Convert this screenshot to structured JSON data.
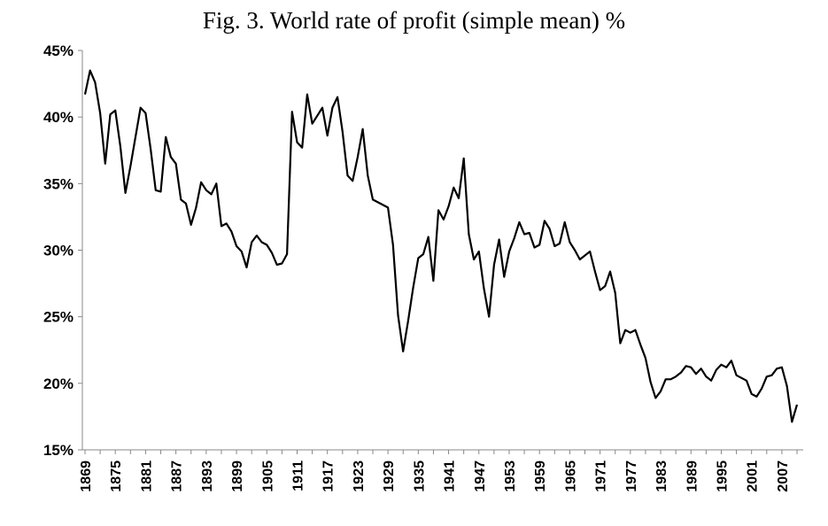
{
  "chart_data": {
    "type": "line",
    "title": "Fig. 3. World rate of profit (simple mean) %",
    "xlabel": "",
    "ylabel": "",
    "ylim": [
      15,
      45
    ],
    "yticks": [
      "15%",
      "20%",
      "25%",
      "30%",
      "35%",
      "40%",
      "45%"
    ],
    "xticks": [
      "1869",
      "1875",
      "1881",
      "1887",
      "1893",
      "1899",
      "1905",
      "1911",
      "1917",
      "1923",
      "1929",
      "1935",
      "1941",
      "1947",
      "1953",
      "1959",
      "1965",
      "1971",
      "1977",
      "1983",
      "1989",
      "1995",
      "2001",
      "2007"
    ],
    "grid": false,
    "line_color": "#000000",
    "series": [
      {
        "x": [
          1869,
          1870,
          1871,
          1872,
          1873,
          1874,
          1875,
          1876,
          1877,
          1878,
          1879,
          1880,
          1881,
          1882,
          1883,
          1884,
          1885,
          1886,
          1887,
          1888,
          1889,
          1890,
          1891,
          1892,
          1893,
          1894,
          1895,
          1896,
          1897,
          1898,
          1899,
          1900,
          1901,
          1902,
          1903,
          1904,
          1905,
          1906,
          1907,
          1908,
          1909,
          1910,
          1911,
          1912,
          1913,
          1914,
          1915,
          1916,
          1917,
          1918,
          1919,
          1920,
          1921,
          1922,
          1923,
          1924,
          1925,
          1926,
          1927,
          1928,
          1929,
          1930,
          1931,
          1932,
          1933,
          1934,
          1935,
          1936,
          1937,
          1938,
          1939,
          1940,
          1941,
          1942,
          1943,
          1944,
          1945,
          1946,
          1947,
          1948,
          1949,
          1950,
          1951,
          1952,
          1953,
          1954,
          1955,
          1956,
          1957,
          1958,
          1959,
          1960,
          1961,
          1962,
          1963,
          1964,
          1965,
          1966,
          1967,
          1968,
          1969,
          1970,
          1971,
          1972,
          1973,
          1974,
          1975,
          1976,
          1977,
          1978,
          1979,
          1980,
          1981,
          1982,
          1983,
          1984,
          1985,
          1986,
          1987,
          1988,
          1989,
          1990,
          1991,
          1992,
          1993,
          1994,
          1995,
          1996,
          1997,
          1998,
          1999,
          2000,
          2001,
          2002,
          2003,
          2004,
          2005,
          2006,
          2007,
          2008,
          2009,
          2010
        ],
        "values": [
          41.7,
          43.5,
          42.6,
          40.3,
          36.5,
          40.2,
          40.5,
          37.8,
          34.3,
          36.3,
          38.5,
          40.7,
          40.3,
          37.6,
          34.5,
          34.4,
          38.5,
          37.0,
          36.5,
          33.8,
          33.5,
          31.9,
          33.2,
          35.1,
          34.5,
          34.2,
          35.0,
          31.8,
          32.0,
          31.4,
          30.3,
          29.9,
          28.7,
          30.6,
          31.1,
          30.6,
          30.4,
          29.8,
          28.9,
          29.0,
          29.7,
          40.4,
          38.1,
          37.7,
          41.7,
          39.5,
          40.1,
          40.7,
          38.6,
          40.7,
          41.5,
          38.9,
          35.6,
          35.2,
          37.0,
          39.1,
          35.6,
          33.8,
          33.6,
          33.4,
          33.2,
          30.4,
          25.1,
          22.4,
          24.7,
          27.2,
          29.4,
          29.7,
          31.0,
          27.7,
          33.0,
          32.3,
          33.3,
          34.7,
          33.9,
          36.9,
          31.2,
          29.3,
          29.9,
          27.1,
          25.0,
          28.9,
          30.8,
          28.0,
          29.9,
          30.9,
          32.1,
          31.2,
          31.3,
          30.2,
          30.4,
          32.2,
          31.6,
          30.3,
          30.5,
          32.1,
          30.6,
          30.0,
          29.3,
          29.6,
          29.9,
          28.4,
          27.0,
          27.3,
          28.4,
          26.8,
          23.0,
          24.0,
          23.8,
          24.0,
          22.9,
          21.9,
          20.1,
          18.9,
          19.4,
          20.3,
          20.3,
          20.5,
          20.8,
          21.3,
          21.2,
          20.7,
          21.1,
          20.5,
          20.2,
          21.0,
          21.4,
          21.2,
          21.7,
          20.6,
          20.4,
          20.2,
          19.2,
          19.0,
          19.6,
          20.5,
          20.6,
          21.1,
          21.2,
          19.8,
          17.1,
          18.4
        ]
      }
    ]
  }
}
